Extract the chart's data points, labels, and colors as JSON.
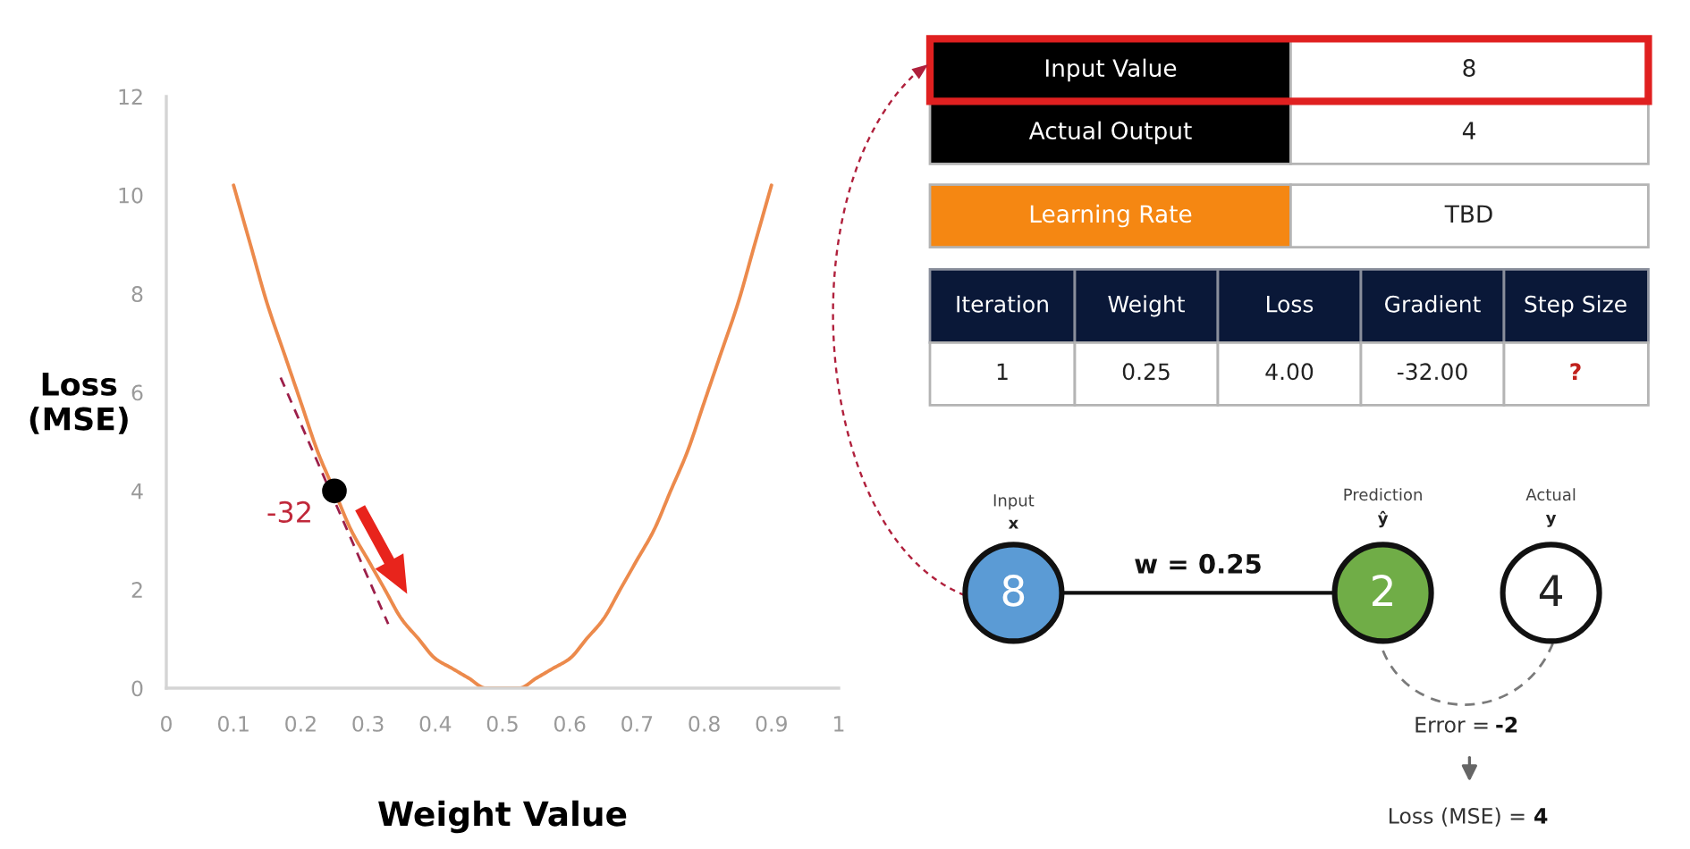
{
  "chart_data": [
    {
      "type": "line",
      "xlabel": "Weight Value",
      "ylabel": "Loss\n(MSE)",
      "x": [
        0.1,
        0.125,
        0.15,
        0.175,
        0.2,
        0.225,
        0.25,
        0.275,
        0.3,
        0.325,
        0.35,
        0.375,
        0.4,
        0.425,
        0.45,
        0.475,
        0.5,
        0.525,
        0.55,
        0.575,
        0.6,
        0.625,
        0.65,
        0.675,
        0.7,
        0.725,
        0.75,
        0.775,
        0.8,
        0.825,
        0.85,
        0.875,
        0.9
      ],
      "series": [
        {
          "color": "#ec8a4c",
          "values": [
            10.2,
            9.0,
            7.8,
            6.8,
            5.8,
            4.8,
            4.0,
            3.2,
            2.6,
            2.0,
            1.4,
            1.0,
            0.6,
            0.4,
            0.2,
            0.0,
            0.0,
            0.0,
            0.2,
            0.4,
            0.6,
            1.0,
            1.4,
            2.0,
            2.6,
            3.2,
            4.0,
            4.8,
            5.8,
            6.8,
            7.8,
            9.0,
            10.2
          ]
        },
        {
          "type": "line",
          "x": [
            0.17,
            0.33
          ],
          "values": [
            6.3,
            1.3
          ],
          "color": "#9c1f4a",
          "line_style": "dashed"
        },
        {
          "type": "scatter",
          "x": [
            0.25
          ],
          "values": [
            4
          ],
          "color": "#000000",
          "marker": "circle"
        }
      ],
      "xlim": [
        0,
        1
      ],
      "ylim": [
        0,
        12
      ],
      "xticks": [
        0,
        0.1,
        0.2,
        0.3,
        0.4,
        0.5,
        0.6,
        0.7,
        0.8,
        0.9,
        1
      ],
      "yticks": [
        0,
        2,
        4,
        6,
        8,
        10,
        12
      ],
      "annotations": [
        {
          "text": "-32",
          "x": 0.25,
          "y": 4
        }
      ]
    },
    {
      "type": "other",
      "annotations": [
        "Input Value",
        "8",
        "Actual Output",
        "4",
        "Learning Rate",
        "TBD",
        "Iteration",
        "Weight",
        "Loss",
        "Gradient",
        "Step Size",
        "1",
        "0.25",
        "4.00",
        "-32.00",
        "?",
        "Input",
        "x",
        "Prediction",
        "ŷ",
        "Actual",
        "y",
        "8",
        "w = 0.25",
        "2",
        "4",
        "Error =",
        "-2",
        "Loss (MSE) =",
        "4"
      ]
    }
  ]
}
